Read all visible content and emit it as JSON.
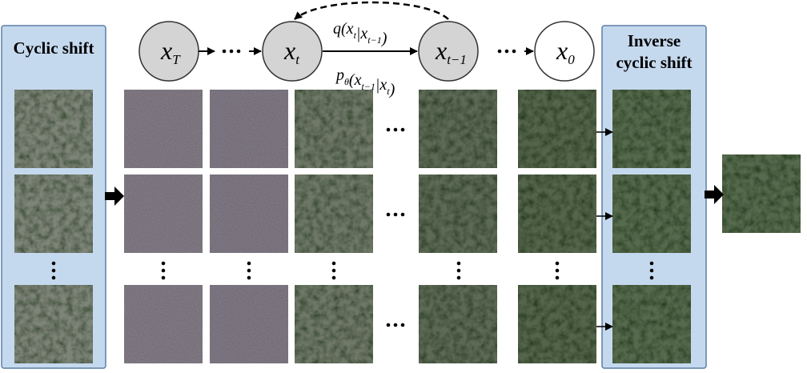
{
  "panels": {
    "left": {
      "title": "Cyclic shift"
    },
    "right": {
      "title_lines": [
        "Inverse",
        "cyclic shift"
      ]
    }
  },
  "nodes": [
    {
      "label": [
        {
          "text": "x",
          "sub": "T"
        }
      ]
    },
    {
      "label": [
        {
          "text": "x",
          "sub": "t"
        }
      ]
    },
    {
      "label": [
        {
          "text": "x",
          "sub": "t−1"
        }
      ]
    },
    {
      "label": [
        {
          "text": "x",
          "sub": "0"
        }
      ]
    }
  ],
  "edges": {
    "forward": [
      {
        "text": "q("
      },
      {
        "text": "x",
        "sub": "t"
      },
      {
        "text": "|"
      },
      {
        "text": "x",
        "sub": "t−1"
      },
      {
        "text": ")"
      }
    ],
    "reverse": [
      {
        "text": "p",
        "sub": "θ"
      },
      {
        "text": "("
      },
      {
        "text": "x",
        "sub": "t−1"
      },
      {
        "text": "|"
      },
      {
        "text": "x",
        "sub": "t"
      },
      {
        "text": ")"
      }
    ]
  }
}
